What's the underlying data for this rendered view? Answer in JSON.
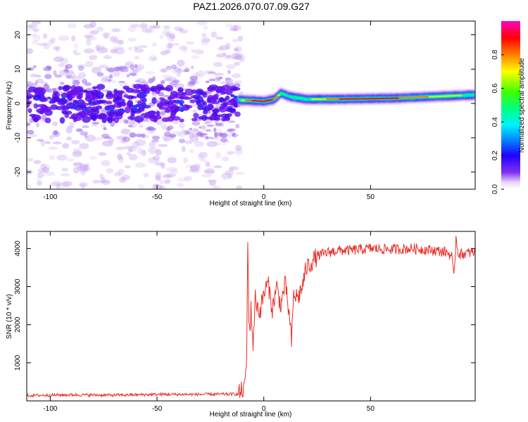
{
  "figure_title": "PAZ1.2026.070.07.09.G27",
  "chart_data": [
    {
      "type": "heatmap",
      "xlabel": "Height of straight line (km)",
      "ylabel": "Frequency (Hz)",
      "xlim": [
        -111,
        99
      ],
      "ylim": [
        -25,
        24
      ],
      "xticks": [
        -100,
        -50,
        0,
        50
      ],
      "xtick_labels": [
        "-100",
        "-50",
        "0",
        "50"
      ],
      "yticks": [
        -20,
        -10,
        0,
        10,
        20
      ],
      "ytick_labels": [
        "-20",
        "-10",
        "0",
        "10",
        "20"
      ],
      "colorbar": {
        "label": "Normalized spectral amplitude",
        "range": [
          0,
          1
        ],
        "ticks": [
          0.0,
          0.2,
          0.4,
          0.6,
          0.8
        ],
        "tick_labels": [
          "0.0",
          "0.2",
          "0.4",
          "0.6",
          "0.8"
        ],
        "colors": [
          "#ffffff",
          "#e0c8f8",
          "#8030f0",
          "#4000ff",
          "#0080ff",
          "#00ffff",
          "#00ff40",
          "#ffff00",
          "#ff8000",
          "#ff0000",
          "#ff00c0"
        ]
      },
      "ridge": {
        "x": [
          -12,
          -5,
          0,
          5,
          8,
          12,
          20,
          40,
          60,
          80,
          99
        ],
        "freq": [
          1.0,
          0.8,
          0.6,
          1.2,
          3.0,
          2.0,
          1.2,
          1.3,
          1.5,
          2.0,
          2.5
        ],
        "peak_amplitude": [
          0.55,
          0.85,
          0.9,
          0.8,
          0.6,
          0.5,
          0.55,
          0.9,
          0.85,
          0.7,
          0.55
        ]
      }
    },
    {
      "type": "line",
      "xlabel": "Height of straight line (km)",
      "ylabel": "SNR (10 * v/v)",
      "xlim": [
        -111,
        99
      ],
      "ylim": [
        0,
        4450
      ],
      "xticks": [
        -100,
        -50,
        0,
        50
      ],
      "xtick_labels": [
        "-100",
        "-50",
        "0",
        "50"
      ],
      "yticks": [
        1000,
        2000,
        3000,
        4000
      ],
      "ytick_labels": [
        "1000",
        "2000",
        "3000",
        "4000"
      ],
      "line_color": "#e8302a",
      "series": [
        {
          "name": "SNR",
          "x": [
            -111,
            -90,
            -70,
            -50,
            -30,
            -12,
            -9,
            -8,
            -7.5,
            -7,
            -6.5,
            -6,
            -5,
            -4,
            -2,
            0,
            2,
            4,
            6,
            8,
            10,
            12,
            13,
            14,
            16,
            18,
            20,
            25,
            30,
            35,
            40,
            50,
            60,
            70,
            80,
            86,
            88,
            89,
            90,
            91,
            92,
            95,
            99
          ],
          "y": [
            140,
            160,
            150,
            170,
            170,
            180,
            320,
            1200,
            4100,
            2300,
            1800,
            2400,
            1500,
            2700,
            2300,
            2800,
            3100,
            2400,
            3000,
            2500,
            3100,
            2200,
            1550,
            2800,
            2700,
            3000,
            3500,
            3800,
            3900,
            3950,
            3950,
            4000,
            3980,
            4000,
            3950,
            3900,
            3800,
            3200,
            4300,
            3900,
            3850,
            3880,
            3900
          ]
        }
      ]
    }
  ]
}
